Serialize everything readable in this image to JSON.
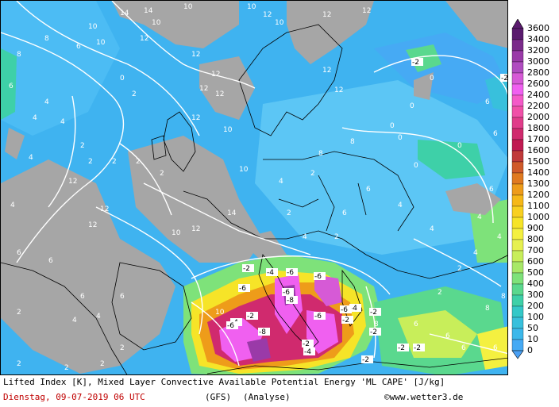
{
  "legend": {
    "unit_levels": [
      "3600",
      "3400",
      "3200",
      "3000",
      "2800",
      "2600",
      "2400",
      "2200",
      "2000",
      "1800",
      "1700",
      "1600",
      "1500",
      "1400",
      "1300",
      "1200",
      "1100",
      "1000",
      "900",
      "800",
      "700",
      "600",
      "500",
      "400",
      "300",
      "200",
      "100",
      "50",
      "10",
      "0"
    ],
    "colors": [
      "#5a1a6e",
      "#7a2a8a",
      "#9a3aa8",
      "#b04cc0",
      "#d65ad6",
      "#f060f0",
      "#f45ac8",
      "#f050a8",
      "#e03c8a",
      "#d02a6e",
      "#c01a52",
      "#c03a3a",
      "#d05a2a",
      "#e07a20",
      "#ee9c1a",
      "#f6b818",
      "#f8d020",
      "#f6e428",
      "#f4f040",
      "#e6f050",
      "#c8ee5a",
      "#a8e868",
      "#7ee27a",
      "#5ad88e",
      "#3ed0a8",
      "#34c8c8",
      "#38c0dc",
      "#3cb8ea",
      "#46aaf4",
      "#4aa0f4"
    ]
  },
  "footer": {
    "line1": "Lifted Index [K], Mixed Layer Convective Available Potential Energy 'ML CAPE' [J/kg]",
    "date": "Dienstag, 09-07-2019  06 UTC",
    "model": "(GFS)",
    "analysis": "(Analyse)",
    "credit": "©www.wetter3.de"
  },
  "colors": {
    "land_grey": "#a6a6a6",
    "ocean_blue": "#3fb3f0",
    "light_blue": "#5cc6f5",
    "coast": "#000000",
    "contour": "#ffffff",
    "date_red": "#c00000"
  },
  "contour_labels": {
    "sea_positive": [
      "10",
      "10",
      "10",
      "10",
      "12",
      "12",
      "12",
      "12",
      "12",
      "12",
      "12",
      "12",
      "12",
      "10",
      "14",
      "12",
      "10",
      "12",
      "12",
      "12",
      "14",
      "14",
      "10",
      "10",
      "10",
      "10",
      "12",
      "12"
    ],
    "small_positive": [
      "8",
      "8",
      "6",
      "6",
      "4",
      "4",
      "4",
      "4",
      "4",
      "6",
      "6",
      "6",
      "6",
      "4",
      "4",
      "2",
      "2",
      "2",
      "2",
      "2",
      "2",
      "2",
      "2",
      "2",
      "2",
      "2",
      "0",
      "0",
      "0",
      "0",
      "0",
      "0",
      "0",
      "6",
      "6",
      "6",
      "4",
      "4",
      "4",
      "2",
      "2",
      "6",
      "6",
      "6",
      "6",
      "8",
      "8",
      "8",
      "8",
      "8",
      "4",
      "4",
      "6",
      "6",
      "4",
      "4",
      "2",
      "2",
      "2"
    ],
    "negative": [
      "-2",
      "-2",
      "-2",
      "-2",
      "-2",
      "-2",
      "-2",
      "-2",
      "-2",
      "-2",
      "-2",
      "-4",
      "-4",
      "-4",
      "-4",
      "-6",
      "-6",
      "-6",
      "-6",
      "-6",
      "-6",
      "-6",
      "-8",
      "-8"
    ]
  }
}
